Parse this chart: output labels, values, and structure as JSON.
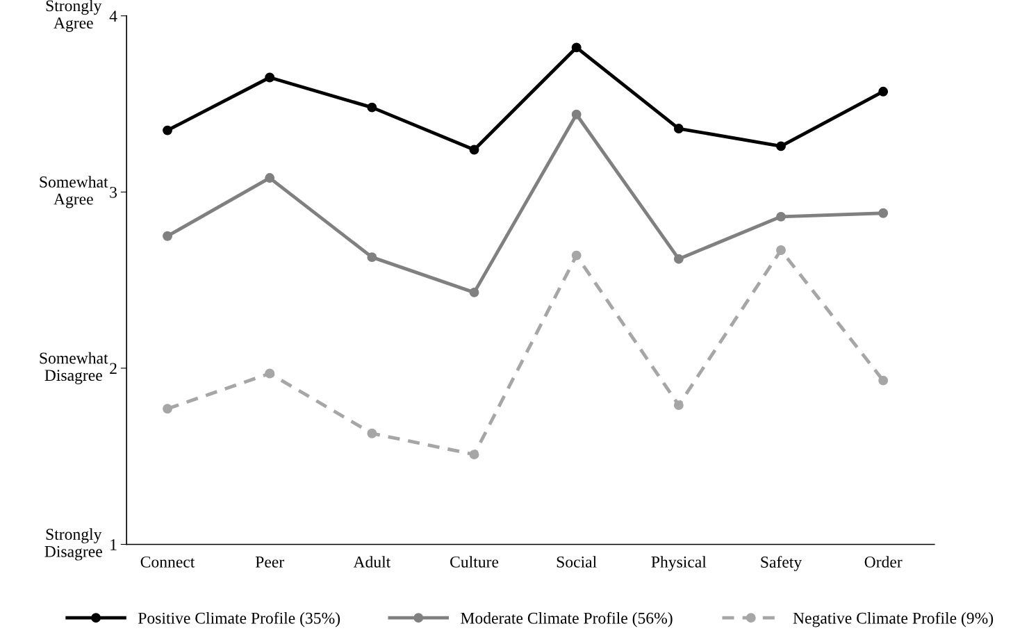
{
  "chart_data": {
    "type": "line",
    "categories": [
      "Connect",
      "Peer",
      "Adult",
      "Culture",
      "Social",
      "Physical",
      "Safety",
      "Order"
    ],
    "series": [
      {
        "name": "Positive Climate Profile (35%)",
        "color": "#000000",
        "line_style": "solid",
        "values": [
          3.35,
          3.65,
          3.48,
          3.24,
          3.82,
          3.36,
          3.26,
          3.57
        ]
      },
      {
        "name": "Moderate Climate Profile (56%)",
        "color": "#808080",
        "line_style": "solid",
        "values": [
          2.75,
          3.08,
          2.63,
          2.43,
          3.44,
          2.62,
          2.86,
          2.88
        ]
      },
      {
        "name": "Negative Climate Profile (9%)",
        "color": "#a6a6a6",
        "line_style": "dashed",
        "values": [
          1.77,
          1.97,
          1.63,
          1.51,
          2.64,
          1.79,
          2.67,
          1.93
        ]
      }
    ],
    "ylim": [
      1,
      4
    ],
    "yticks": [
      1,
      2,
      3,
      4
    ],
    "annotations": [
      "Strongly\nDisagree",
      "Somewhat\nDisagree",
      "Somewhat\nAgree",
      "Strongly\nAgree"
    ],
    "marker": "circle",
    "grid": false,
    "legend": "bottom"
  }
}
